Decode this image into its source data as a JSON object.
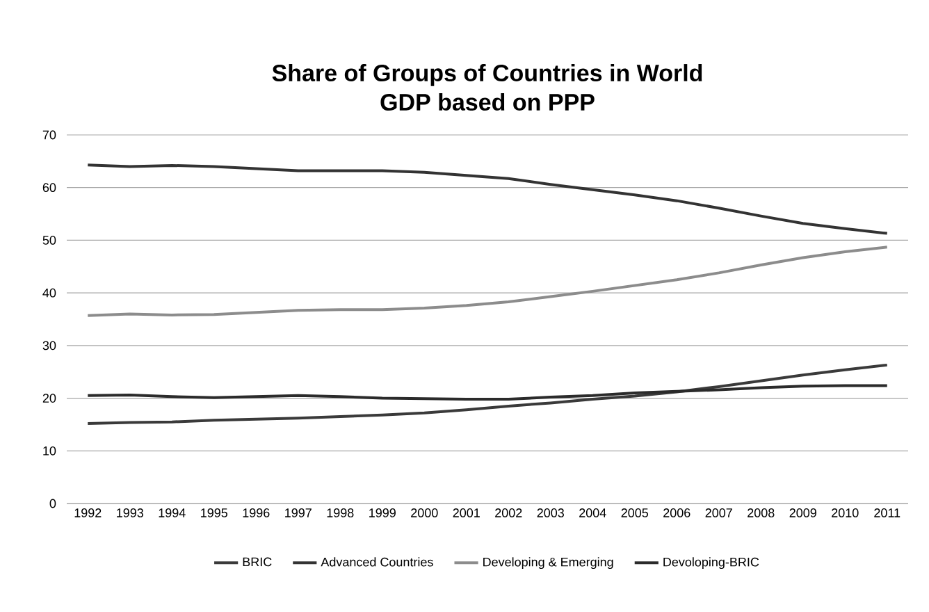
{
  "chart_data": {
    "type": "line",
    "title": "Share of Groups of Countries in World GDP based on PPP",
    "categories": [
      "1992",
      "1993",
      "1994",
      "1995",
      "1996",
      "1997",
      "1998",
      "1999",
      "2000",
      "2001",
      "2002",
      "2003",
      "2004",
      "2005",
      "2006",
      "2007",
      "2008",
      "2009",
      "2010",
      "2011"
    ],
    "series": [
      {
        "name": "BRIC",
        "color": "#3a3a3a",
        "values": [
          15.2,
          15.4,
          15.5,
          15.8,
          16.0,
          16.2,
          16.5,
          16.8,
          17.2,
          17.8,
          18.5,
          19.1,
          19.8,
          20.4,
          21.2,
          22.2,
          23.3,
          24.4,
          25.4,
          26.3
        ]
      },
      {
        "name": "Advanced Countries",
        "color": "#333333",
        "values": [
          64.3,
          64.0,
          64.2,
          64.0,
          63.6,
          63.2,
          63.2,
          63.2,
          62.9,
          62.3,
          61.7,
          60.6,
          59.6,
          58.6,
          57.5,
          56.1,
          54.6,
          53.2,
          52.2,
          51.3
        ]
      },
      {
        "name": "Developing & Emerging",
        "color": "#8c8c8c",
        "values": [
          35.7,
          36.0,
          35.8,
          35.9,
          36.3,
          36.7,
          36.8,
          36.8,
          37.1,
          37.6,
          38.3,
          39.3,
          40.3,
          41.4,
          42.5,
          43.8,
          45.3,
          46.7,
          47.8,
          48.7
        ]
      },
      {
        "name": "Devoloping-BRIC",
        "color": "#2b2b2b",
        "values": [
          20.5,
          20.6,
          20.3,
          20.1,
          20.3,
          20.5,
          20.3,
          20.0,
          19.9,
          19.8,
          19.8,
          20.2,
          20.5,
          21.0,
          21.3,
          21.6,
          22.0,
          22.3,
          22.4,
          22.4
        ]
      }
    ],
    "ylim": [
      0,
      70
    ],
    "yticks": [
      0,
      10,
      20,
      30,
      40,
      50,
      60,
      70
    ],
    "grid": "y",
    "legend": "bottom",
    "marker": "none",
    "line_style": "solid"
  }
}
